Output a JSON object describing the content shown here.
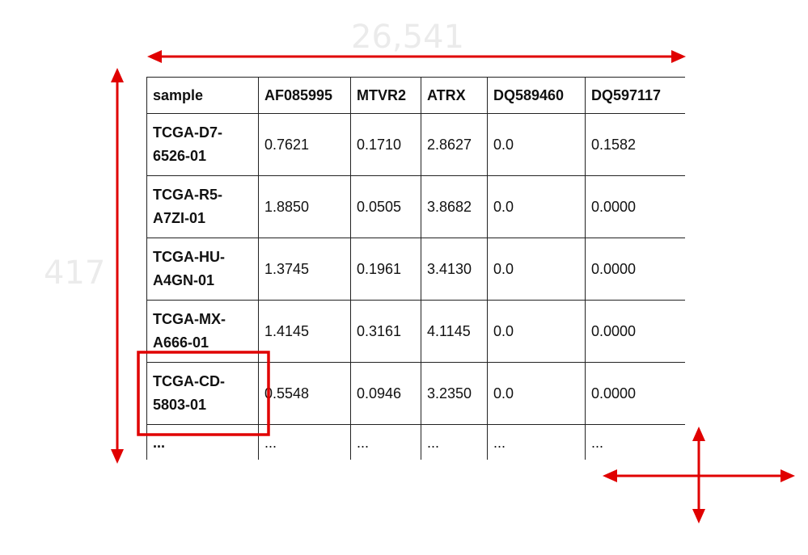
{
  "dimensions": {
    "width_label": "26,541",
    "height_label": "417"
  },
  "table": {
    "headers": [
      "sample",
      "AF085995",
      "MTVR2",
      "ATRX",
      "DQ589460",
      "DQ597117"
    ],
    "rows": [
      [
        "TCGA-D7-6526-01",
        "0.7621",
        "0.1710",
        "2.8627",
        "0.0",
        "0.1582"
      ],
      [
        "TCGA-R5-A7ZI-01",
        "1.8850",
        "0.0505",
        "3.8682",
        "0.0",
        "0.0000"
      ],
      [
        "TCGA-HU-A4GN-01",
        "1.3745",
        "0.1961",
        "3.4130",
        "0.0",
        "0.0000"
      ],
      [
        "TCGA-MX-A666-01",
        "1.4145",
        "0.3161",
        "4.1145",
        "0.0",
        "0.0000"
      ],
      [
        "TCGA-CD-5803-01",
        "0.5548",
        "0.0946",
        "3.2350",
        "0.0",
        "0.0000"
      ]
    ],
    "ellipsis": [
      "...",
      "...",
      "...",
      "...",
      "...",
      "..."
    ]
  },
  "colors": {
    "annotation": "#e00000",
    "label_watermark": "#ebebeb",
    "border": "#222222"
  },
  "icons": [
    "width-arrow-icon",
    "height-arrow-icon",
    "move-cross-icon"
  ]
}
